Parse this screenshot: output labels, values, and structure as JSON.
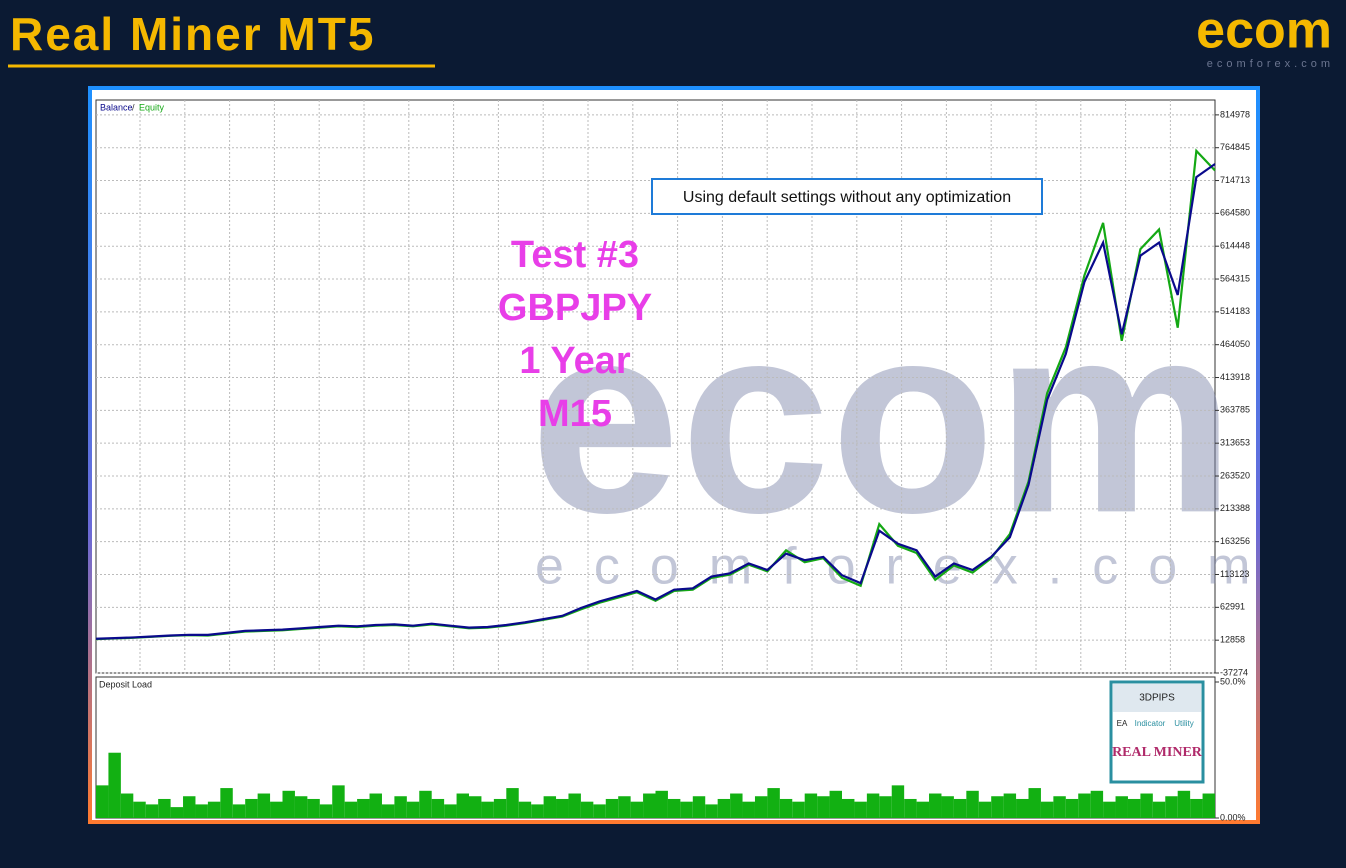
{
  "header": {
    "title": "Real Miner MT5",
    "logo": "ecom",
    "logo_sub": "ecomforex.com"
  },
  "watermark": {
    "logo": "ecom",
    "site": "ecomforex.com"
  },
  "badge": {
    "brand": "3DPIPS",
    "tabs": [
      "EA",
      "Indicator",
      "Utility"
    ],
    "product": "REAL MINER"
  },
  "chart_data": [
    {
      "type": "line",
      "legend_separator": "/",
      "annotations": [
        "Using default settings without any optimization",
        "Test #3",
        "GBPJPY",
        "1 Year",
        "M15"
      ],
      "ylim": [
        -37274,
        837700
      ],
      "yticks": [
        -37274,
        12858,
        62991,
        113123,
        163256,
        213388,
        263520,
        313653,
        363785,
        413918,
        464050,
        514183,
        564315,
        614448,
        664580,
        714713,
        764845,
        814978
      ],
      "grid": true,
      "series": [
        {
          "name": "Balance",
          "color": "#0a0a8c",
          "values": [
            15000,
            16000,
            17000,
            18500,
            20000,
            21000,
            21000,
            24000,
            27000,
            28000,
            29000,
            31000,
            33000,
            35000,
            34000,
            36000,
            37000,
            35000,
            38000,
            35000,
            32000,
            33000,
            36000,
            40000,
            45000,
            50000,
            62000,
            72000,
            80000,
            88000,
            75000,
            90000,
            92000,
            110000,
            115000,
            130000,
            120000,
            145000,
            135000,
            140000,
            112000,
            100000,
            180000,
            160000,
            150000,
            110000,
            130000,
            120000,
            140000,
            170000,
            250000,
            380000,
            450000,
            560000,
            620000,
            480000,
            600000,
            620000,
            540000,
            720000,
            740000
          ]
        },
        {
          "name": "Equity",
          "color": "#14a814",
          "values": [
            14500,
            15500,
            16500,
            18000,
            19500,
            20500,
            20000,
            23000,
            26000,
            27000,
            28000,
            30000,
            32000,
            34000,
            33000,
            35000,
            36000,
            34000,
            37000,
            34000,
            31000,
            32000,
            35000,
            39000,
            44000,
            49000,
            60000,
            70000,
            78000,
            86000,
            73000,
            88000,
            90000,
            108000,
            113000,
            128000,
            118000,
            150000,
            132000,
            138000,
            108000,
            96000,
            190000,
            157000,
            146000,
            105000,
            127000,
            116000,
            138000,
            175000,
            255000,
            390000,
            460000,
            570000,
            650000,
            470000,
            610000,
            640000,
            490000,
            760000,
            730000
          ]
        }
      ]
    },
    {
      "type": "bar",
      "title": "Deposit Load",
      "color": "#12b012",
      "ylim": [
        0,
        50
      ],
      "yticks": [
        {
          "value": 0,
          "label": "0.00%"
        },
        {
          "value": 50,
          "label": "50.0%"
        }
      ],
      "values": [
        12,
        24,
        9,
        6,
        5,
        7,
        4,
        8,
        5,
        6,
        11,
        5,
        7,
        9,
        6,
        10,
        8,
        7,
        5,
        12,
        6,
        7,
        9,
        5,
        8,
        6,
        10,
        7,
        5,
        9,
        8,
        6,
        7,
        11,
        6,
        5,
        8,
        7,
        9,
        6,
        5,
        7,
        8,
        6,
        9,
        10,
        7,
        6,
        8,
        5,
        7,
        9,
        6,
        8,
        11,
        7,
        6,
        9,
        8,
        10,
        7,
        6,
        9,
        8,
        12,
        7,
        6,
        9,
        8,
        7,
        10,
        6,
        8,
        9,
        7,
        11,
        6,
        8,
        7,
        9,
        10,
        6,
        8,
        7,
        9,
        6,
        8,
        10,
        7,
        9
      ]
    }
  ]
}
